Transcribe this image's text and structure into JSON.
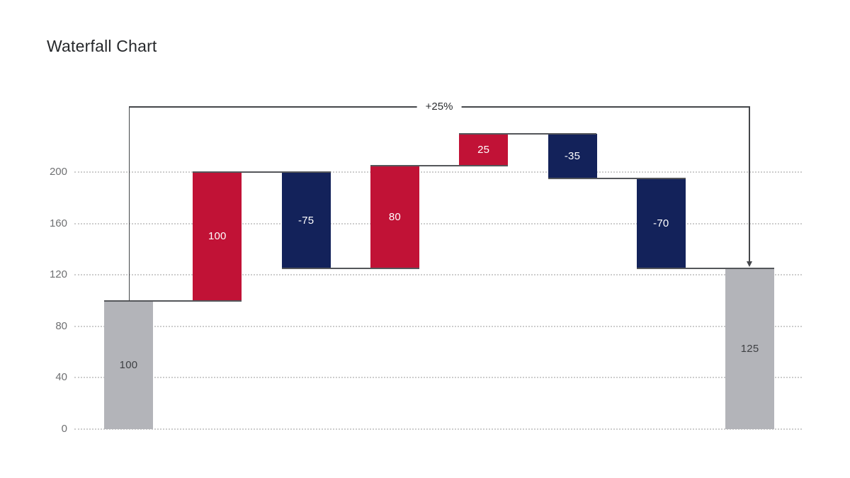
{
  "page": {
    "background": "#ffffff"
  },
  "chart_data": {
    "type": "waterfall",
    "title": "Waterfall Chart",
    "xlabel": "",
    "ylabel": "",
    "y_ticks": [
      200,
      160,
      120,
      80,
      40,
      0
    ],
    "ylim": [
      0,
      250
    ],
    "grid": "dotted-horizontal",
    "legend": "none",
    "bars": [
      {
        "label": "100",
        "value": 100,
        "start": 0,
        "end": 100,
        "kind": "total"
      },
      {
        "label": "100",
        "value": 100,
        "start": 100,
        "end": 200,
        "kind": "increase"
      },
      {
        "label": "-75",
        "value": -75,
        "start": 200,
        "end": 125,
        "kind": "decrease"
      },
      {
        "label": "80",
        "value": 80,
        "start": 125,
        "end": 205,
        "kind": "increase"
      },
      {
        "label": "25",
        "value": 25,
        "start": 205,
        "end": 230,
        "kind": "increase"
      },
      {
        "label": "-35",
        "value": -35,
        "start": 230,
        "end": 195,
        "kind": "decrease"
      },
      {
        "label": "-70",
        "value": -70,
        "start": 195,
        "end": 125,
        "kind": "decrease"
      },
      {
        "label": "125",
        "value": 125,
        "start": 0,
        "end": 125,
        "kind": "total"
      }
    ],
    "annotation": {
      "text": "+25%",
      "from_bar": 0,
      "to_bar": 7
    },
    "colors": {
      "increase": "#c11236",
      "decrease": "#13225a",
      "total": "#b3b4b9",
      "connector": "#54565a",
      "grid": "#cdcdcd",
      "tick_label": "#6f7072",
      "title": "#26282b",
      "bar_label_light": "#ffffff",
      "bar_label_dark": "#3f4144",
      "annotation_line": "#44464a"
    }
  }
}
